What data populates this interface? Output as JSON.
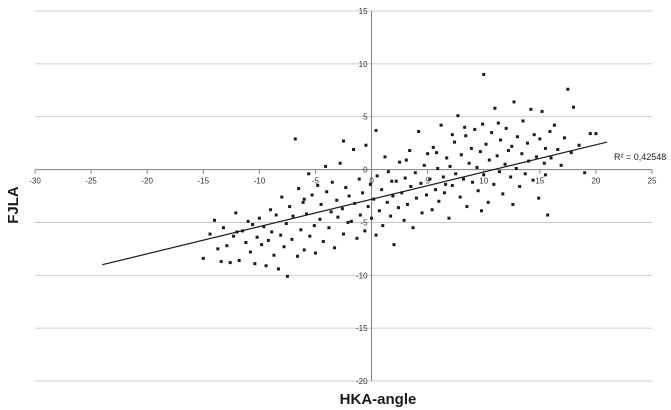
{
  "chart_data": {
    "type": "scatter",
    "title": "",
    "xlabel": "HKA-angle",
    "ylabel": "FJLA",
    "xlim": [
      -30,
      25
    ],
    "ylim": [
      -20,
      15
    ],
    "x_ticks": [
      "-30",
      "-25",
      "-20",
      "-15",
      "-10",
      "-5",
      "0",
      "5",
      "10",
      "15",
      "20",
      "25"
    ],
    "y_ticks": [
      "15",
      "10",
      "5",
      "0",
      "-5",
      "-10",
      "-15",
      "-20"
    ],
    "grid": "horizontal",
    "annotation": "R² = 0,42548",
    "colors": {
      "points": "#1a1a1a",
      "trendline": "#1a1a1a",
      "grid": "#bfbfbf"
    },
    "trendline": {
      "type": "linear",
      "x": [
        -24,
        21
      ],
      "y": [
        -9.0,
        2.6
      ]
    },
    "series": [
      {
        "points": [
          [
            -15,
            -8.4
          ],
          [
            -14.4,
            -6.1
          ],
          [
            -14,
            -4.8
          ],
          [
            -13.7,
            -7.5
          ],
          [
            -13.4,
            -8.7
          ],
          [
            -13.2,
            -5.5
          ],
          [
            -12.9,
            -7.2
          ],
          [
            -12.6,
            -8.8
          ],
          [
            -12.3,
            -6.3
          ],
          [
            -12.1,
            -4.1
          ],
          [
            -11.8,
            -8.6
          ],
          [
            -11.5,
            -5.8
          ],
          [
            -11.2,
            -6.9
          ],
          [
            -11,
            -4.9
          ],
          [
            -10.8,
            -7.8
          ],
          [
            -10.6,
            -5.2
          ],
          [
            -10.4,
            -8.9
          ],
          [
            -10.2,
            -6.4
          ],
          [
            -10,
            -4.6
          ],
          [
            -9.8,
            -7.1
          ],
          [
            -9.6,
            -5.4
          ],
          [
            -9.4,
            -9.1
          ],
          [
            -9.2,
            -6.7
          ],
          [
            -9,
            -3.8
          ],
          [
            -8.9,
            -5.9
          ],
          [
            -8.7,
            -8.1
          ],
          [
            -8.5,
            -4.3
          ],
          [
            -8.3,
            -9.4
          ],
          [
            -8.1,
            -6.2
          ],
          [
            -8,
            -2.6
          ],
          [
            -7.8,
            -7.3
          ],
          [
            -7.6,
            -5.1
          ],
          [
            -7.5,
            -10.1
          ],
          [
            -7.3,
            -3.5
          ],
          [
            -7.1,
            -6.6
          ],
          [
            -7,
            -4.4
          ],
          [
            -6.8,
            2.9
          ],
          [
            -6.6,
            -8.2
          ],
          [
            -6.5,
            -1.8
          ],
          [
            -6.3,
            -5.7
          ],
          [
            -6.1,
            -3.1
          ],
          [
            -6,
            -7.6
          ],
          [
            -5.8,
            -4.2
          ],
          [
            -5.6,
            -0.4
          ],
          [
            -5.5,
            -6.3
          ],
          [
            -5.3,
            -2.4
          ],
          [
            -5.1,
            -5.3
          ],
          [
            -5,
            -7.9
          ],
          [
            -4.8,
            -1.5
          ],
          [
            -4.6,
            -4.7
          ],
          [
            -4.5,
            -3.3
          ],
          [
            -4.3,
            -6.8
          ],
          [
            -4.1,
            0.3
          ],
          [
            -4,
            -2.1
          ],
          [
            -3.8,
            -5.5
          ],
          [
            -3.6,
            -4
          ],
          [
            -3.5,
            -1.2
          ],
          [
            -3.3,
            -7.4
          ],
          [
            -3.1,
            -2.9
          ],
          [
            -3,
            -4.5
          ],
          [
            -2.8,
            0.6
          ],
          [
            -2.6,
            -3.7
          ],
          [
            -2.5,
            -6.1
          ],
          [
            -2.3,
            -1.7
          ],
          [
            -2.1,
            -5
          ],
          [
            -2,
            -2.5
          ],
          [
            -1.8,
            -4.9
          ],
          [
            -1.6,
            1.9
          ],
          [
            -1.5,
            -3.2
          ],
          [
            -1.3,
            -6.5
          ],
          [
            -1.1,
            -0.9
          ],
          [
            -1,
            -4.3
          ],
          [
            -0.8,
            -2.2
          ],
          [
            -0.6,
            -5.8
          ],
          [
            -0.5,
            2.3
          ],
          [
            -0.3,
            -3.5
          ],
          [
            -0.1,
            -1.4
          ],
          [
            0,
            -4.6
          ],
          [
            0.2,
            -2.8
          ],
          [
            0.4,
            -6.2
          ],
          [
            0.5,
            -0.6
          ],
          [
            0.7,
            -3.9
          ],
          [
            0.9,
            -1.9
          ],
          [
            1,
            -5.3
          ],
          [
            1.2,
            1.2
          ],
          [
            1.4,
            -3.1
          ],
          [
            1.5,
            -0.2
          ],
          [
            1.7,
            -4.4
          ],
          [
            1.9,
            -2.5
          ],
          [
            2,
            -7.1
          ],
          [
            2.2,
            -1.1
          ],
          [
            2.4,
            -3.6
          ],
          [
            2.5,
            0.7
          ],
          [
            2.7,
            -2.2
          ],
          [
            2.9,
            -4.8
          ],
          [
            3,
            -0.8
          ],
          [
            3.2,
            -3.3
          ],
          [
            3.4,
            1.8
          ],
          [
            3.5,
            -1.6
          ],
          [
            3.7,
            -5.5
          ],
          [
            3.9,
            -0.3
          ],
          [
            4,
            -2.7
          ],
          [
            4.2,
            3.6
          ],
          [
            4.4,
            -1.3
          ],
          [
            4.5,
            -4.1
          ],
          [
            4.7,
            0.4
          ],
          [
            4.9,
            -2.4
          ],
          [
            5,
            1.5
          ],
          [
            5.2,
            -0.9
          ],
          [
            5.4,
            -3.8
          ],
          [
            5.5,
            2.1
          ],
          [
            5.7,
            -1.9
          ],
          [
            5.9,
            0.1
          ],
          [
            6,
            -3
          ],
          [
            6.2,
            4.2
          ],
          [
            6.4,
            -0.7
          ],
          [
            6.5,
            -2.2
          ],
          [
            6.7,
            1.1
          ],
          [
            6.9,
            -4.6
          ],
          [
            7,
            0.3
          ],
          [
            7.2,
            -1.5
          ],
          [
            7.4,
            2.6
          ],
          [
            7.5,
            -0.4
          ],
          [
            7.7,
            5.1
          ],
          [
            7.9,
            -2.6
          ],
          [
            8,
            1.4
          ],
          [
            8.2,
            -0.9
          ],
          [
            8.4,
            3.2
          ],
          [
            8.5,
            -3.5
          ],
          [
            8.7,
            0.6
          ],
          [
            8.9,
            2
          ],
          [
            9,
            -1.2
          ],
          [
            9.2,
            3.8
          ],
          [
            9.4,
            0.2
          ],
          [
            9.5,
            -2
          ],
          [
            9.7,
            1.7
          ],
          [
            9.9,
            4.3
          ],
          [
            10,
            -0.5
          ],
          [
            10.2,
            2.4
          ],
          [
            10.4,
            -3.1
          ],
          [
            10.5,
            0.9
          ],
          [
            10.7,
            3.5
          ],
          [
            10.9,
            -1.4
          ],
          [
            11,
            5.8
          ],
          [
            11.2,
            1.3
          ],
          [
            11.4,
            -0.2
          ],
          [
            11.5,
            2.8
          ],
          [
            11.7,
            -2.3
          ],
          [
            11.9,
            0.5
          ],
          [
            12,
            3.9
          ],
          [
            12.2,
            1.8
          ],
          [
            12.4,
            -0.7
          ],
          [
            12.5,
            2.2
          ],
          [
            12.7,
            6.4
          ],
          [
            12.9,
            0.1
          ],
          [
            13,
            3.1
          ],
          [
            13.2,
            -1.6
          ],
          [
            13.4,
            1.5
          ],
          [
            13.5,
            4.6
          ],
          [
            13.7,
            -0.4
          ],
          [
            13.9,
            2.5
          ],
          [
            14,
            0.8
          ],
          [
            14.2,
            5.7
          ],
          [
            14.4,
            -1
          ],
          [
            14.5,
            3.3
          ],
          [
            14.7,
            1.2
          ],
          [
            14.9,
            -2.7
          ],
          [
            15,
            2.9
          ],
          [
            15.2,
            5.5
          ],
          [
            15.4,
            0.6
          ],
          [
            15.5,
            2
          ],
          [
            15.7,
            -4.3
          ],
          [
            15.9,
            3.6
          ],
          [
            16,
            1.1
          ],
          [
            16.3,
            4.2
          ],
          [
            16.6,
            1.9
          ],
          [
            16.9,
            0.4
          ],
          [
            17.2,
            3
          ],
          [
            17.5,
            7.6
          ],
          [
            17.8,
            1.6
          ],
          [
            18,
            5.9
          ],
          [
            18.5,
            2.3
          ],
          [
            19,
            -0.3
          ],
          [
            19.5,
            3.4
          ],
          [
            20,
            3.4
          ],
          [
            10,
            9
          ],
          [
            7.2,
            3.3
          ],
          [
            5.8,
            1.6
          ],
          [
            0.4,
            3.7
          ],
          [
            -2.5,
            2.7
          ],
          [
            -12,
            -5.9
          ],
          [
            -6,
            -2.8
          ],
          [
            1.8,
            -1.1
          ],
          [
            3.1,
            0.9
          ],
          [
            6.6,
            -1.4
          ],
          [
            9.8,
            -3.9
          ],
          [
            12.6,
            -3.3
          ],
          [
            15.5,
            -0.5
          ],
          [
            8.3,
            4
          ],
          [
            11.3,
            4.4
          ]
        ]
      }
    ]
  }
}
